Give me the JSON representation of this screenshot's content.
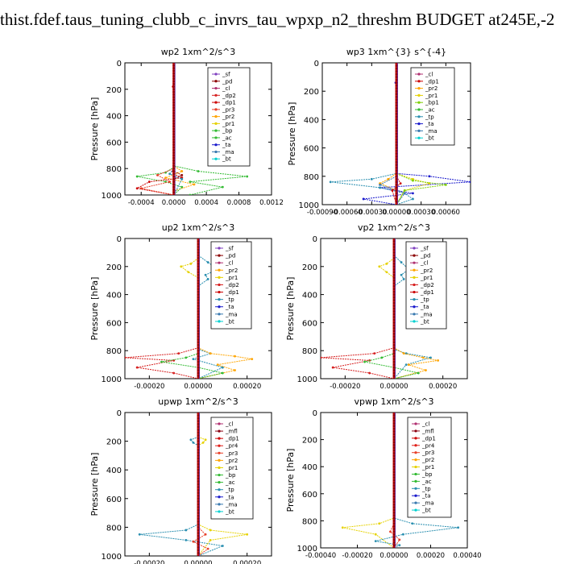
{
  "title": "thist.fdef.taus_tuning_clubb_c_invrs_tau_wpxp_n2_threshm  BUDGET at245E,-2",
  "colors": {
    "sf": "#7f3fbf",
    "pd": "#8b0000",
    "cl": "#b03070",
    "mfl": "#8b0010",
    "dp1": "#cc0000",
    "dp2": "#d62020",
    "pr4": "#e0201a",
    "pr3": "#e8402a",
    "pr2": "#ffa500",
    "pr1": "#e6d200",
    "bp1": "#7cd000",
    "bp": "#33bb33",
    "ac": "#33bb33",
    "tp": "#2a8fb0",
    "ta": "#1a1acc",
    "ma": "#3a7ab0",
    "bt": "#00d0d0"
  },
  "chart_data": [
    {
      "type": "line",
      "title": "wp2  1xm^2/s^3",
      "ylabel": "Pressure [hPa]",
      "ylim": [
        1000,
        0
      ],
      "xlim": [
        -0.0006,
        0.0012
      ],
      "xticks": [
        "-0.0004",
        "0.0000",
        "0.0004",
        "0.0008",
        "0.0012"
      ],
      "xtick_values": [
        -0.0004,
        0.0,
        0.0004,
        0.0008,
        0.0012
      ],
      "yticks": [
        0,
        200,
        400,
        600,
        800,
        1000
      ],
      "legend": [
        "_sf",
        "_pd",
        "_cl",
        "_dp2",
        "_dp1",
        "_pr3",
        "_pr2",
        "_pr1",
        "_bp",
        "_ac",
        "_ta",
        "_ma",
        "_bt"
      ],
      "legend_keys": [
        "sf",
        "pd",
        "cl",
        "dp2",
        "dp1",
        "pr3",
        "pr2",
        "pr1",
        "bp",
        "ac",
        "ta",
        "ma",
        "bt"
      ],
      "series": [
        {
          "key": "pr2",
          "x": [
            0,
            0,
            0.0001,
            -0.0001,
            0.00025,
            0,
            0
          ],
          "y": [
            0,
            780,
            820,
            870,
            920,
            970,
            1000
          ]
        },
        {
          "key": "bp",
          "x": [
            0,
            0,
            0.0003,
            0.0009,
            0.0002,
            0.0006,
            0.0002
          ],
          "y": [
            0,
            780,
            820,
            860,
            900,
            940,
            1000
          ]
        },
        {
          "key": "ac",
          "x": [
            0,
            0,
            -0.0001,
            -0.00045,
            -0.0001,
            0.0001,
            0
          ],
          "y": [
            0,
            790,
            830,
            860,
            900,
            940,
            1000
          ]
        },
        {
          "key": "dp1",
          "x": [
            0,
            -1e-05,
            0,
            -1e-05,
            0,
            0.0001,
            -0.0003,
            -0.00045,
            0
          ],
          "y": [
            0,
            180,
            220,
            820,
            840,
            870,
            900,
            950,
            1000
          ]
        },
        {
          "key": "pr3",
          "x": [
            0,
            0,
            -0.0002,
            -5e-05,
            -0.0004,
            0
          ],
          "y": [
            0,
            800,
            850,
            900,
            950,
            1000
          ]
        },
        {
          "key": "tp",
          "x": [
            0,
            0,
            -5e-05,
            0.0001,
            0
          ],
          "y": [
            0,
            800,
            840,
            880,
            1000
          ]
        },
        {
          "key": "pd",
          "x": [
            0,
            0,
            0.0001,
            0,
            0
          ],
          "y": [
            0,
            820,
            850,
            880,
            1000
          ]
        }
      ]
    },
    {
      "type": "line",
      "title": "wp3  1xm^{3} s^{-4}",
      "ylabel": "Pressure [hPa]",
      "ylim": [
        1000,
        0
      ],
      "xlim": [
        -0.0009,
        0.0009
      ],
      "xticks": [
        "-0.00090",
        "-0.00060",
        "-0.00030",
        "0.00000",
        "0.00030",
        "0.00060"
      ],
      "xtick_values": [
        -0.0009,
        -0.0006,
        -0.0003,
        0.0,
        0.0003,
        0.0006
      ],
      "yticks": [
        0,
        200,
        400,
        600,
        800,
        1000
      ],
      "legend": [
        "_cl",
        "_dp1",
        "_pr2",
        "_pr1",
        "_bp1",
        "_ac",
        "_tp",
        "_ta",
        "_ma",
        "_bt"
      ],
      "legend_keys": [
        "cl",
        "dp1",
        "pr2",
        "pr1",
        "bp1",
        "ac",
        "tp",
        "ta",
        "ma",
        "bt"
      ],
      "series": [
        {
          "key": "ta",
          "x": [
            0,
            0,
            -1e-05,
            0,
            0,
            0.0004,
            0.0009,
            -0.0002,
            0.0002,
            -0.0004,
            0
          ],
          "y": [
            0,
            120,
            140,
            160,
            780,
            800,
            840,
            880,
            920,
            960,
            1000
          ]
        },
        {
          "key": "tp",
          "x": [
            0,
            0,
            -0.0003,
            -0.0008,
            -0.0002,
            0.0001,
            0.0002,
            0
          ],
          "y": [
            0,
            780,
            820,
            840,
            880,
            920,
            960,
            1000
          ]
        },
        {
          "key": "pr1",
          "x": [
            0,
            0,
            0.0002,
            0.0004,
            0.0001,
            0
          ],
          "y": [
            0,
            780,
            820,
            850,
            900,
            1000
          ]
        },
        {
          "key": "bp1",
          "x": [
            0,
            0,
            0.0002,
            0.0006,
            0.0001,
            0
          ],
          "y": [
            0,
            780,
            830,
            860,
            900,
            1000
          ]
        },
        {
          "key": "pr2",
          "x": [
            0,
            0,
            -0.0001,
            -0.0002,
            0,
            0
          ],
          "y": [
            0,
            780,
            820,
            850,
            900,
            1000
          ]
        },
        {
          "key": "ma",
          "x": [
            0,
            0,
            -0.0002,
            0.0001,
            0
          ],
          "y": [
            0,
            800,
            860,
            920,
            1000
          ]
        },
        {
          "key": "dp1",
          "x": [
            0,
            0,
            5e-05,
            -5e-05,
            0
          ],
          "y": [
            0,
            800,
            850,
            900,
            1000
          ]
        }
      ]
    },
    {
      "type": "line",
      "title": "up2  1xm^2/s^3",
      "ylabel": "Pressure [hPa]",
      "ylim": [
        1000,
        0
      ],
      "xlim": [
        -0.0003,
        0.0003
      ],
      "xticks": [
        "-0.00020",
        "0.00000",
        "0.00020"
      ],
      "xtick_values": [
        -0.0002,
        0.0,
        0.0002
      ],
      "yticks": [
        0,
        200,
        400,
        600,
        800,
        1000
      ],
      "legend": [
        "_sf",
        "_pd",
        "_cl",
        "_pr2",
        "_pr1",
        "_dp2",
        "_dp1",
        "_tp",
        "_ta",
        "_ma",
        "_bt"
      ],
      "legend_keys": [
        "sf",
        "pd",
        "cl",
        "pr2",
        "pr1",
        "dp2",
        "dp1",
        "tp",
        "ta",
        "ma",
        "bt"
      ],
      "series": [
        {
          "key": "tp",
          "x": [
            0,
            0,
            4e-05,
            8e-05,
            3e-05,
            4e-05,
            0,
            0,
            5e-05,
            -2e-05,
            0.0001,
            0
          ],
          "y": [
            0,
            120,
            170,
            220,
            260,
            290,
            340,
            790,
            820,
            860,
            920,
            1000
          ]
        },
        {
          "key": "pr1",
          "x": [
            0,
            0,
            -3e-05,
            -7e-05,
            -4e-05,
            0,
            0
          ],
          "y": [
            0,
            140,
            180,
            200,
            240,
            280,
            1000
          ]
        },
        {
          "key": "dp2",
          "x": [
            0,
            0,
            -8e-05,
            -0.0003,
            -0.0001,
            -0.00025,
            -0.0001,
            0
          ],
          "y": [
            0,
            780,
            820,
            850,
            870,
            920,
            960,
            1000
          ]
        },
        {
          "key": "pr2",
          "x": [
            0,
            0,
            5e-05,
            0.00015,
            0.00022,
            8e-05,
            0.00015,
            0
          ],
          "y": [
            0,
            780,
            820,
            840,
            860,
            900,
            940,
            1000
          ]
        },
        {
          "key": "ac",
          "x": [
            0,
            0,
            -5e-05,
            -0.00015,
            0,
            0.0001,
            0
          ],
          "y": [
            0,
            820,
            850,
            880,
            920,
            960,
            1000
          ]
        }
      ]
    },
    {
      "type": "line",
      "title": "vp2  1xm^2/s^3",
      "ylabel": "Pressure [hPa]",
      "ylim": [
        1000,
        0
      ],
      "xlim": [
        -0.0003,
        0.0003
      ],
      "xticks": [
        "-0.00020",
        "0.00000",
        "0.00020"
      ],
      "xtick_values": [
        -0.0002,
        0.0,
        0.0002
      ],
      "yticks": [
        0,
        200,
        400,
        600,
        800,
        1000
      ],
      "legend": [
        "_sf",
        "_pd",
        "_cl",
        "_pr2",
        "_pr1",
        "_dp2",
        "_dp1",
        "_tp",
        "_ta",
        "_ma",
        "_bt"
      ],
      "legend_keys": [
        "sf",
        "pd",
        "cl",
        "pr2",
        "pr1",
        "dp2",
        "dp1",
        "tp",
        "ta",
        "ma",
        "bt"
      ],
      "series": [
        {
          "key": "tp",
          "x": [
            0,
            0,
            3e-05,
            6e-05,
            3e-05,
            4e-05,
            0,
            0,
            5e-05,
            0.00015,
            5e-05,
            0
          ],
          "y": [
            0,
            120,
            170,
            220,
            260,
            290,
            340,
            790,
            820,
            850,
            900,
            1000
          ]
        },
        {
          "key": "pr1",
          "x": [
            0,
            0,
            -3e-05,
            -6e-05,
            -3e-05,
            0,
            0
          ],
          "y": [
            0,
            140,
            180,
            200,
            240,
            280,
            1000
          ]
        },
        {
          "key": "dp2",
          "x": [
            0,
            0,
            -8e-05,
            -0.0003,
            -0.0001,
            -0.00025,
            -0.0001,
            0
          ],
          "y": [
            0,
            780,
            820,
            850,
            870,
            920,
            960,
            1000
          ]
        },
        {
          "key": "pr2",
          "x": [
            0,
            0,
            4e-05,
            0.00012,
            0.00018,
            6e-05,
            0.00013,
            0
          ],
          "y": [
            0,
            780,
            820,
            850,
            870,
            900,
            940,
            1000
          ]
        },
        {
          "key": "ac",
          "x": [
            0,
            0,
            -5e-05,
            -0.00012,
            0,
            0.0001,
            0
          ],
          "y": [
            0,
            820,
            850,
            880,
            920,
            960,
            1000
          ]
        }
      ]
    },
    {
      "type": "line",
      "title": "upwp  1xm^2/s^3",
      "ylabel": "Pressure [hPa]",
      "ylim": [
        1000,
        0
      ],
      "xlim": [
        -0.0003,
        0.0003
      ],
      "xticks": [
        "-0.00020",
        "0.00000",
        "0.00020"
      ],
      "xtick_values": [
        -0.0002,
        0.0,
        0.0002
      ],
      "yticks": [
        0,
        200,
        400,
        600,
        800,
        1000
      ],
      "legend": [
        "_cl",
        "_mfl",
        "_dp1",
        "_pr4",
        "_pr3",
        "_pr2",
        "_pr1",
        "_bp",
        "_ac",
        "_tp",
        "_ta",
        "_ma",
        "_bt"
      ],
      "legend_keys": [
        "cl",
        "mfl",
        "dp1",
        "pr4",
        "pr3",
        "pr2",
        "pr1",
        "bp",
        "ac",
        "tp",
        "ta",
        "ma",
        "bt"
      ],
      "series": [
        {
          "key": "pr1",
          "x": [
            0,
            0,
            3e-05,
            2e-05,
            0,
            0
          ],
          "y": [
            0,
            170,
            190,
            210,
            230,
            1000
          ]
        },
        {
          "key": "tp",
          "x": [
            0,
            0,
            -3e-05,
            -2e-05,
            0,
            0
          ],
          "y": [
            0,
            170,
            190,
            210,
            230,
            1000
          ]
        },
        {
          "key": "tp",
          "x": [
            0,
            0,
            -5e-05,
            -0.00024,
            -5e-05,
            0.0001,
            0
          ],
          "y": [
            0,
            780,
            820,
            850,
            890,
            930,
            1000
          ]
        },
        {
          "key": "pr1",
          "x": [
            0,
            0,
            5e-05,
            0.0002,
            5e-05,
            0
          ],
          "y": [
            0,
            780,
            820,
            850,
            890,
            1000
          ]
        },
        {
          "key": "pr3",
          "x": [
            0,
            0,
            3e-05,
            -2e-05,
            4e-05,
            0
          ],
          "y": [
            0,
            800,
            850,
            900,
            950,
            1000
          ]
        }
      ]
    },
    {
      "type": "line",
      "title": "vpwp  1xm^2/s^3",
      "ylabel": "Pressure [hPa]",
      "ylim": [
        1000,
        0
      ],
      "xlim": [
        -0.0004,
        0.0004
      ],
      "xticks": [
        "-0.00040",
        "-0.00020",
        "0.00000",
        "0.00020",
        "0.00040"
      ],
      "xtick_values": [
        -0.0004,
        -0.0002,
        0.0,
        0.0002,
        0.0004
      ],
      "yticks": [
        0,
        200,
        400,
        600,
        800,
        1000
      ],
      "legend": [
        "_cl",
        "_mfl",
        "_dp1",
        "_pr4",
        "_pr3",
        "_pr2",
        "_pr1",
        "_bp",
        "_ac",
        "_tp",
        "_ta",
        "_ma",
        "_bt"
      ],
      "legend_keys": [
        "cl",
        "mfl",
        "dp1",
        "pr4",
        "pr3",
        "pr2",
        "pr1",
        "bp",
        "ac",
        "tp",
        "ta",
        "ma",
        "bt"
      ],
      "series": [
        {
          "key": "pr1",
          "x": [
            0,
            0,
            -8e-05,
            -0.00028,
            -0.0001,
            0
          ],
          "y": [
            0,
            780,
            820,
            850,
            900,
            1000
          ]
        },
        {
          "key": "tp",
          "x": [
            0,
            0,
            0.0001,
            0.00035,
            5e-05,
            -0.0001,
            3e-05,
            0
          ],
          "y": [
            0,
            780,
            820,
            850,
            900,
            950,
            980,
            1000
          ]
        },
        {
          "key": "pr3",
          "x": [
            0,
            0,
            -2e-05,
            3e-05,
            0
          ],
          "y": [
            0,
            820,
            880,
            940,
            1000
          ]
        }
      ]
    }
  ]
}
